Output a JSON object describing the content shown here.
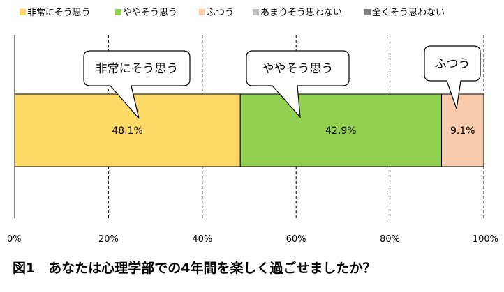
{
  "chart_data": {
    "type": "bar",
    "orientation": "horizontal",
    "stacked": true,
    "percent_stacked": true,
    "categories": [
      ""
    ],
    "series": [
      {
        "name": "非常にそう思う",
        "values": [
          48.1
        ],
        "color": "#ffd966",
        "data_label": "48.1%"
      },
      {
        "name": "ややそう思う",
        "values": [
          42.9
        ],
        "color": "#92d050",
        "data_label": "42.9%"
      },
      {
        "name": "ふつう",
        "values": [
          9.1
        ],
        "color": "#f8cbad",
        "data_label": "9.1%"
      },
      {
        "name": "あまりそう思わない",
        "values": [
          0
        ],
        "color": "#bfbfbf",
        "data_label": ""
      },
      {
        "name": "全くそう思わない",
        "values": [
          0
        ],
        "color": "#7f7f7f",
        "data_label": ""
      }
    ],
    "xlim": [
      0,
      100
    ],
    "x_ticks": [
      "0%",
      "20%",
      "40%",
      "60%",
      "80%",
      "100%"
    ],
    "grid": "vertical dashed",
    "legend_position": "top",
    "callouts": [
      "非常にそう思う",
      "ややそう思う",
      "ふつう"
    ],
    "title": "",
    "xlabel": "",
    "ylabel": ""
  },
  "caption": "図1　あなたは心理学部での4年間を楽しく過ごせましたか？"
}
